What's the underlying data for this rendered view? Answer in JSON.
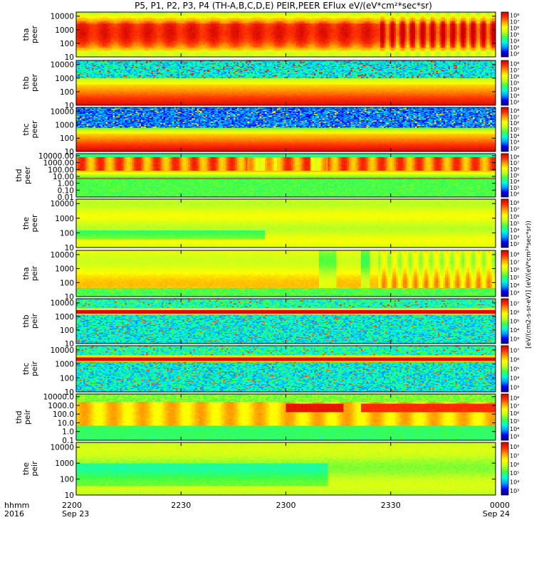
{
  "title": "P5, P1, P2, P3, P4 (TH-A,B,C,D,E) PEIR,PEER EFlux eV/(eV*cm²*sec*sr)",
  "colorbar_title": "[eV/(cm2-s-sr-eV)] (eV/(eV*cm²*sec*sr))",
  "colormap": [
    "#1a0070",
    "#0000ff",
    "#00a0ff",
    "#00ffe0",
    "#40ff40",
    "#c0ff20",
    "#ffff00",
    "#ffa000",
    "#ff3000",
    "#d00000"
  ],
  "chart_data": {
    "type": "heatmap",
    "x_label_row1": "hhmm",
    "x_label_row2": "2016",
    "x_ticks": [
      {
        "v": 0,
        "l1": "2200",
        "l2": "Sep 23"
      },
      {
        "v": 30,
        "l1": "2230",
        "l2": ""
      },
      {
        "v": 60,
        "l1": "2300",
        "l2": ""
      },
      {
        "v": 90,
        "l1": "2330",
        "l2": ""
      },
      {
        "v": 120,
        "l1": "0000",
        "l2": "Sep 24"
      }
    ],
    "xlim": [
      0,
      120
    ],
    "panels": [
      {
        "id": "tha-peer",
        "label": "tha\npeer",
        "ylim": [
          10,
          20000
        ],
        "yticks": [
          "10",
          "100",
          "1000",
          "10000"
        ],
        "cb": [
          "10²",
          "10³",
          "10⁴",
          "10⁵",
          "10⁶",
          "10⁷",
          "10⁸"
        ],
        "pattern": "hot-band"
      },
      {
        "id": "thb-peer",
        "label": "thb\npeer",
        "ylim": [
          10,
          20000
        ],
        "yticks": [
          "10",
          "100",
          "1000",
          "10000"
        ],
        "cb": [
          "10²",
          "10³",
          "10⁴",
          "10⁵",
          "10⁶",
          "10⁷",
          "10⁸"
        ],
        "pattern": "noise-top"
      },
      {
        "id": "thc-peer",
        "label": "thc\npeer",
        "ylim": [
          10,
          20000
        ],
        "yticks": [
          "10",
          "100",
          "1000",
          "10000"
        ],
        "cb": [
          "10²",
          "10³",
          "10⁴",
          "10⁵",
          "10⁶",
          "10⁷",
          "10⁸"
        ],
        "pattern": "noise-top-dark"
      },
      {
        "id": "thd-peer",
        "label": "thd\npeer",
        "ylim": [
          0.01,
          20000
        ],
        "yticks": [
          "0.01",
          "0.10",
          "1.00",
          "10.00",
          "100.00",
          "1000.00",
          "10000.00"
        ],
        "cb": [
          "10²",
          "10³",
          "10⁴",
          "10⁵",
          "10⁶",
          "10⁷",
          "10⁸"
        ],
        "pattern": "thd-peer"
      },
      {
        "id": "the-peer",
        "label": "the\npeer",
        "ylim": [
          10,
          20000
        ],
        "yticks": [
          "10",
          "100",
          "1000",
          "10000"
        ],
        "cb": [
          "10²",
          "10³",
          "10⁴",
          "10⁵",
          "10⁶",
          "10⁷",
          "10⁸"
        ],
        "pattern": "yellow"
      },
      {
        "id": "tha-peir",
        "label": "tha\npeir",
        "ylim": [
          10,
          20000
        ],
        "yticks": [
          "10",
          "100",
          "1000",
          "10000"
        ],
        "cb": [
          "10³",
          "10⁴",
          "10⁵",
          "10⁶",
          "10⁷",
          "10⁸"
        ],
        "pattern": "peir-a"
      },
      {
        "id": "thb-peir",
        "label": "thb\npeir",
        "ylim": [
          10,
          20000
        ],
        "yticks": [
          "10",
          "100",
          "1000",
          "10000"
        ],
        "cb": [
          "10³",
          "10⁴",
          "10⁵",
          "10⁶",
          "10⁷"
        ],
        "pattern": "peir-noise"
      },
      {
        "id": "thc-peir",
        "label": "thc\npeir",
        "ylim": [
          10,
          20000
        ],
        "yticks": [
          "10",
          "100",
          "1000",
          "10000"
        ],
        "cb": [
          "10³",
          "10⁴",
          "10⁵",
          "10⁶",
          "10⁷"
        ],
        "pattern": "peir-noise"
      },
      {
        "id": "thd-peir",
        "label": "thd\npeir",
        "ylim": [
          0.1,
          20000
        ],
        "yticks": [
          "0.1",
          "1.0",
          "10.0",
          "100.0",
          "1000.0",
          "10000.0"
        ],
        "cb": [
          "10³",
          "10⁴",
          "10⁵",
          "10⁶",
          "10⁷",
          "10⁸"
        ],
        "pattern": "thd-peir"
      },
      {
        "id": "the-peir",
        "label": "the\npeir",
        "ylim": [
          10,
          20000
        ],
        "yticks": [
          "10",
          "100",
          "1000",
          "10000"
        ],
        "cb": [
          "10³",
          "10⁴",
          "10⁵",
          "10⁶",
          "10⁷",
          "10⁸"
        ],
        "pattern": "yellow-green"
      }
    ]
  }
}
